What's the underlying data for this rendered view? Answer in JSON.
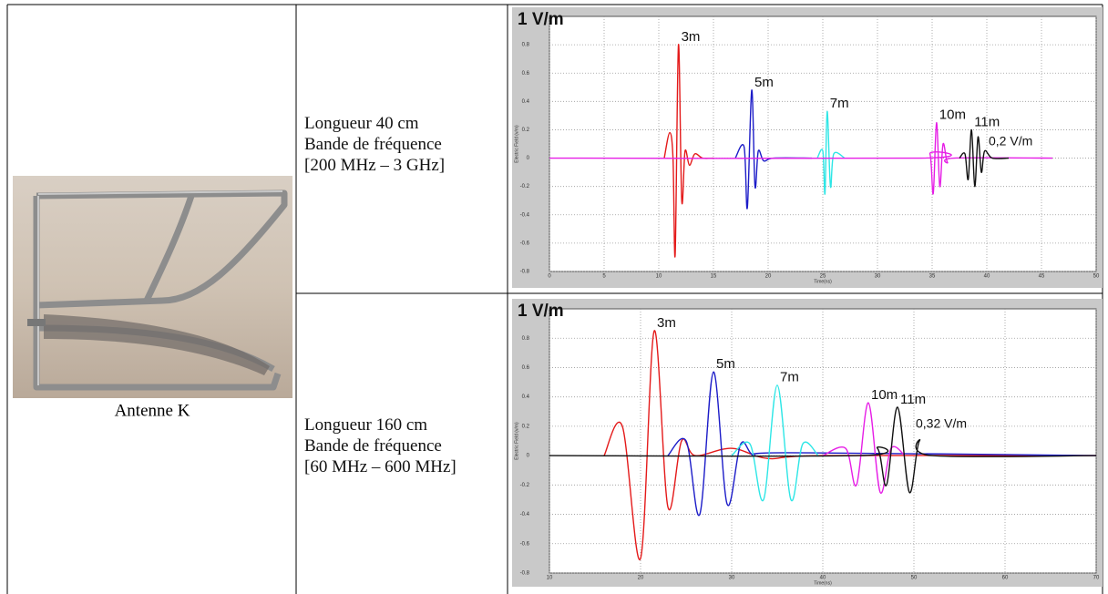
{
  "table": {
    "caption": "Antenne K",
    "rows": [
      [
        "Longueur 40 cm",
        "Bande de fréquence",
        "[200 MHz – 3 GHz]"
      ],
      [
        "Longueur 160 cm",
        "Bande de fréquence",
        "[60 MHz – 600 MHz]"
      ]
    ]
  },
  "chart_data": [
    {
      "type": "line",
      "title": "1 V/m",
      "x_label": "Time(ns)",
      "y_label": "Electric Field (v/m)",
      "xlim": [
        0,
        50
      ],
      "xticks": [
        0,
        5,
        10,
        15,
        20,
        25,
        30,
        35,
        40,
        45,
        50
      ],
      "ylim": [
        -0.8,
        1
      ],
      "yticks": [
        -0.8,
        -0.6,
        -0.4,
        -0.2,
        0,
        0.2,
        0.4,
        0.6,
        0.8
      ],
      "grid": true,
      "annotation": "0,2 V/m",
      "series": [
        {
          "name": "3m",
          "color": "#e41a1a",
          "x": [
            10.5,
            11,
            11.3,
            11.5,
            11.8,
            12.1,
            12.4,
            12.8,
            13.3,
            14,
            15
          ],
          "values": [
            0,
            0.18,
            0,
            -0.68,
            0.8,
            -0.3,
            0.05,
            -0.05,
            0.03,
            0,
            0
          ]
        },
        {
          "name": "5m",
          "color": "#1c1cc8",
          "x": [
            17,
            17.8,
            18.1,
            18.5,
            18.8,
            19.1,
            19.6,
            20.5,
            24
          ],
          "values": [
            0,
            0.08,
            -0.35,
            0.48,
            -0.2,
            0.05,
            -0.02,
            0,
            0
          ]
        },
        {
          "name": "7m",
          "color": "#2ee6e6",
          "x": [
            24.5,
            25,
            25.2,
            25.4,
            25.7,
            26,
            27
          ],
          "values": [
            0,
            0.05,
            -0.25,
            0.33,
            -0.2,
            0.03,
            0
          ]
        },
        {
          "name": "10m",
          "color": "#e61ee6",
          "x": [
            0,
            34,
            34.8,
            35.1,
            35.4,
            35.7,
            36,
            36.4,
            37,
            46
          ],
          "values": [
            0,
            0,
            0.03,
            -0.25,
            0.25,
            -0.2,
            0.1,
            -0.03,
            0,
            0
          ]
        },
        {
          "name": "11m",
          "color": "#111111",
          "x": [
            37.5,
            38,
            38.3,
            38.6,
            38.9,
            39.2,
            39.5,
            39.8,
            40.5,
            42
          ],
          "values": [
            0,
            0.03,
            -0.15,
            0.2,
            -0.2,
            0.15,
            -0.1,
            0.05,
            0,
            0
          ]
        }
      ]
    },
    {
      "type": "line",
      "title": "1 V/m",
      "x_label": "Time(ns)",
      "y_label": "Electric Field (v/m)",
      "xlim": [
        10,
        70
      ],
      "xticks": [
        10,
        20,
        30,
        40,
        50,
        60,
        70
      ],
      "ylim": [
        -0.8,
        1
      ],
      "yticks": [
        -0.8,
        -0.6,
        -0.4,
        -0.2,
        0,
        0.2,
        0.4,
        0.6,
        0.8
      ],
      "grid": true,
      "annotation": "0,32 V/m",
      "series": [
        {
          "name": "3m",
          "color": "#e41a1a",
          "x": [
            16,
            18,
            20,
            21.5,
            23,
            24.5,
            26,
            30,
            34,
            40,
            70
          ],
          "values": [
            0,
            0.2,
            -0.7,
            0.85,
            -0.35,
            0.1,
            0,
            0.05,
            -0.02,
            0,
            0
          ]
        },
        {
          "name": "5m",
          "color": "#1c1cc8",
          "x": [
            23,
            25,
            26.5,
            28,
            29.5,
            31,
            32.5,
            36,
            70
          ],
          "values": [
            0,
            0.1,
            -0.4,
            0.57,
            -0.33,
            0.08,
            0,
            0.02,
            0
          ]
        },
        {
          "name": "7m",
          "color": "#2ee6e6",
          "x": [
            30,
            32,
            33.5,
            35,
            36.5,
            37.8,
            39.5
          ],
          "values": [
            0,
            0.08,
            -0.3,
            0.48,
            -0.3,
            0.08,
            0
          ]
        },
        {
          "name": "10m",
          "color": "#e61ee6",
          "x": [
            40,
            42.5,
            43.7,
            45,
            46.3,
            47.5,
            49
          ],
          "values": [
            0,
            0.05,
            -0.2,
            0.36,
            -0.25,
            0.05,
            0
          ]
        },
        {
          "name": "11m",
          "color": "#111111",
          "x": [
            10,
            44,
            46,
            47,
            48.2,
            49.5,
            50.6,
            52,
            70
          ],
          "values": [
            0,
            0,
            0.05,
            -0.2,
            0.33,
            -0.25,
            0.1,
            0,
            0
          ]
        }
      ]
    }
  ]
}
